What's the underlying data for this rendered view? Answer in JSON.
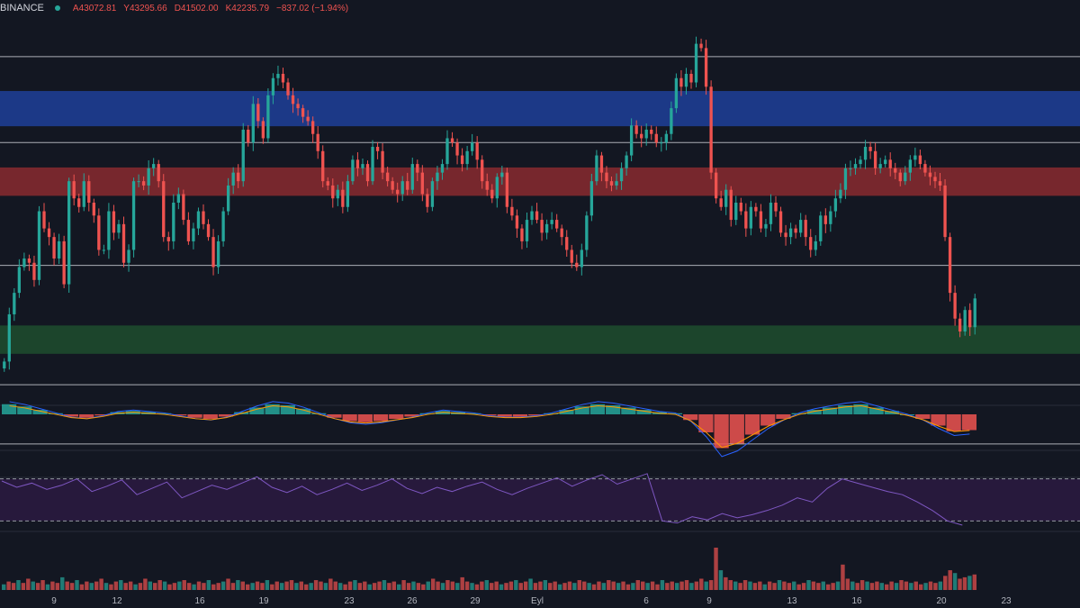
{
  "header": {
    "exchange": "BINANCE",
    "status_color": "#26a69a",
    "open": "A43072.81",
    "high": "Y43295.66",
    "low": "D41502.00",
    "close": "K42235.79",
    "change": "−837.02 (−1.94%)"
  },
  "colors": {
    "background": "#131722",
    "up": "#26a69a",
    "down": "#ef5350",
    "resistance_zone": "#1f3f99",
    "pivot_zone": "#8a2a2f",
    "support_zone": "#1f4d2e",
    "rsi_line": "#7e57c2",
    "rsi_band": "#2a1a3f"
  },
  "chart_data": [
    {
      "type": "candlestick",
      "x_ticks": [
        "9",
        "12",
        "16",
        "19",
        "23",
        "26",
        "29",
        "Eyl",
        "6",
        "9",
        "13",
        "16",
        "20",
        "23"
      ],
      "y_range": [
        41200,
        45500
      ],
      "horizontal_levels": [
        45050,
        44050,
        42620,
        41230,
        40540
      ],
      "zones": [
        {
          "name": "resistance",
          "from": 44240,
          "to": 44650,
          "color": "#1f3f99"
        },
        {
          "name": "pivot",
          "from": 43430,
          "to": 43760,
          "color": "#8a2a2f"
        },
        {
          "name": "support",
          "from": 41590,
          "to": 41920,
          "color": "#1f4d2e"
        }
      ],
      "close": [
        41500,
        42050,
        42300,
        42600,
        42700,
        42650,
        42450,
        43250,
        43050,
        42950,
        42700,
        42900,
        42400,
        43600,
        43400,
        43300,
        43600,
        43350,
        43200,
        42800,
        42800,
        43250,
        43000,
        43100,
        42650,
        42800,
        43600,
        43600,
        43550,
        43750,
        43800,
        43600,
        42950,
        42900,
        43350,
        43450,
        43150,
        42900,
        43050,
        43250,
        43100,
        42950,
        42600,
        42900,
        43250,
        43550,
        43700,
        43600,
        44200,
        44050,
        44500,
        44300,
        44100,
        44600,
        44800,
        44850,
        44750,
        44600,
        44500,
        44450,
        44350,
        44300,
        44150,
        43950,
        43600,
        43550,
        43400,
        43500,
        43300,
        43600,
        43850,
        43750,
        43800,
        43600,
        44000,
        43950,
        43700,
        43600,
        43500,
        43450,
        43600,
        43500,
        43800,
        43700,
        43450,
        43300,
        43600,
        43700,
        43800,
        44100,
        44050,
        43900,
        43800,
        43950,
        44050,
        43850,
        43600,
        43500,
        43400,
        43650,
        43700,
        43300,
        43200,
        43050,
        42900,
        43150,
        43250,
        43150,
        43000,
        43100,
        43150,
        43050,
        42950,
        42800,
        42650,
        42600,
        42800,
        43200,
        43600,
        43900,
        43700,
        43600,
        43550,
        43600,
        43750,
        43900,
        44250,
        44150,
        44100,
        44200,
        44150,
        44050,
        44050,
        44150,
        44450,
        44800,
        44700,
        44850,
        44750,
        45200,
        45150,
        44700,
        43700,
        43400,
        43300,
        43500,
        43150,
        43350,
        43250,
        43050,
        43300,
        43250,
        43050,
        43100,
        43350,
        43250,
        43000,
        42950,
        43050,
        43000,
        43150,
        42950,
        42800,
        42900,
        43200,
        43100,
        43250,
        43400,
        43500,
        43750,
        43750,
        43800,
        43850,
        44000,
        43950,
        43750,
        43800,
        43850,
        43750,
        43700,
        43600,
        43700,
        43850,
        43900,
        43800,
        43700,
        43650,
        43600,
        43550,
        42950,
        42300,
        42000,
        41850,
        42100,
        41900,
        42235
      ]
    },
    {
      "type": "macd",
      "histogram": [
        0.9,
        0.7,
        0.4,
        0.1,
        -0.2,
        -0.3,
        -0.1,
        0.2,
        0.3,
        0.2,
        0.1,
        -0.1,
        -0.3,
        -0.4,
        -0.2,
        0.2,
        0.6,
        0.9,
        0.8,
        0.5,
        0.1,
        -0.3,
        -0.6,
        -0.7,
        -0.6,
        -0.4,
        -0.2,
        0.1,
        0.3,
        0.2,
        0.1,
        -0.1,
        -0.2,
        -0.2,
        -0.1,
        0.1,
        0.4,
        0.7,
        0.9,
        0.8,
        0.6,
        0.4,
        0.2,
        0.1,
        -0.5,
        -1.6,
        -3.0,
        -2.6,
        -1.8,
        -1.0,
        -0.4,
        0.1,
        0.4,
        0.6,
        0.8,
        0.9,
        0.6,
        0.3,
        0.0,
        -0.4,
        -1.0,
        -1.5,
        -1.4
      ],
      "range": [
        -3.2,
        1.2
      ]
    },
    {
      "type": "rsi",
      "band": [
        30,
        70
      ],
      "range": [
        20,
        80
      ],
      "values": [
        68,
        62,
        66,
        60,
        64,
        70,
        58,
        63,
        69,
        55,
        61,
        67,
        52,
        58,
        64,
        60,
        66,
        72,
        62,
        57,
        63,
        55,
        60,
        66,
        59,
        64,
        70,
        61,
        56,
        62,
        58,
        63,
        67,
        60,
        55,
        61,
        66,
        71,
        63,
        69,
        74,
        65,
        70,
        75,
        30,
        28,
        34,
        31,
        37,
        33,
        36,
        40,
        45,
        52,
        48,
        61,
        70,
        66,
        62,
        58,
        55,
        48,
        40,
        30,
        26
      ]
    },
    {
      "type": "volume",
      "values": [
        4,
        6,
        5,
        7,
        5,
        8,
        6,
        5,
        7,
        4,
        6,
        5,
        9,
        6,
        5,
        7,
        4,
        6,
        5,
        6,
        8,
        5,
        4,
        6,
        7,
        5,
        6,
        4,
        5,
        8,
        6,
        5,
        7,
        6,
        4,
        5,
        6,
        7,
        5,
        4,
        6,
        5,
        7,
        4,
        5,
        6,
        8,
        5,
        7,
        6,
        4,
        5,
        6,
        5,
        7,
        4,
        6,
        5,
        6,
        7,
        5,
        6,
        4,
        5,
        7,
        6,
        5,
        8,
        6,
        5,
        4,
        6,
        7,
        5,
        6,
        4,
        5,
        6,
        7,
        5,
        6,
        4,
        7,
        5,
        6,
        5,
        4,
        6,
        8,
        6,
        5,
        7,
        6,
        5,
        9,
        6,
        5,
        4,
        6,
        7,
        5,
        6,
        4,
        5,
        6,
        7,
        5,
        6,
        8,
        5,
        6,
        7,
        5,
        6,
        4,
        5,
        6,
        5,
        7,
        6,
        5,
        4,
        6,
        5,
        7,
        6,
        5,
        6,
        4,
        5,
        7,
        6,
        5,
        6,
        4,
        7,
        5,
        6,
        5,
        6,
        7,
        5,
        6,
        8,
        6,
        7,
        30,
        14,
        9,
        7,
        6,
        5,
        7,
        6,
        5,
        6,
        4,
        6,
        5,
        7,
        6,
        5,
        6,
        4,
        5,
        7,
        6,
        5,
        6,
        4,
        5,
        6,
        18,
        8,
        6,
        5,
        7,
        6,
        5,
        6,
        5,
        4,
        6,
        5,
        7,
        6,
        5,
        6,
        4,
        5,
        6,
        5,
        6,
        10,
        14,
        12,
        8,
        9,
        10,
        11
      ]
    }
  ]
}
